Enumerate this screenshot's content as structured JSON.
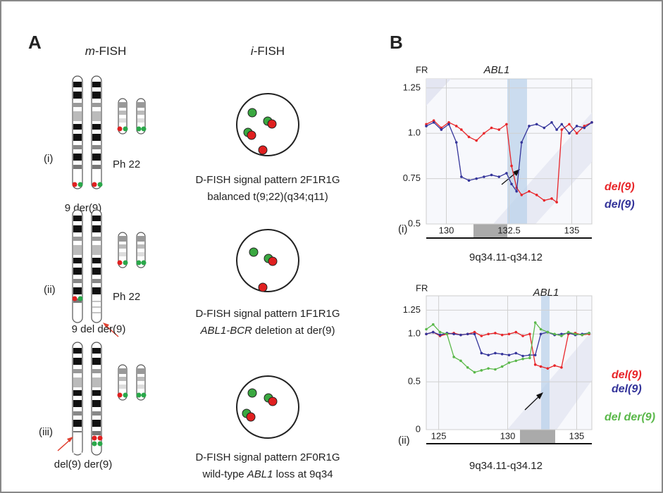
{
  "panel_a": {
    "label": "A",
    "m_fish": [
      "m",
      "-FISH"
    ],
    "i_fish": [
      "i",
      "-FISH"
    ],
    "rows": [
      {
        "label": "(i)",
        "small_label": "Ph 22",
        "big_label": "9 der(9)",
        "pattern": "D-FISH signal pattern 2F1R1G",
        "desc": [
          "balanced t(9;22)(q34;q11)"
        ]
      },
      {
        "label": "(ii)",
        "small_label": "Ph 22",
        "big_label": "9 del der(9)",
        "pattern": "D-FISH signal pattern 1F1R1G",
        "desc": [
          "ABL1-BCR",
          " deletion at der(9)"
        ]
      },
      {
        "label": "(iii)",
        "big_label": "del(9) der(9)",
        "pattern": "D-FISH signal pattern 2F0R1G",
        "desc": [
          "wild-type ",
          "ABL1",
          " loss at 9q34"
        ]
      }
    ]
  },
  "panel_b_label": "B",
  "chart_data": [
    {
      "type": "line",
      "label": "(i)",
      "ylabel": "FR",
      "annotation": "ABL1",
      "xlabel": "9q34.11-q34.12",
      "xlim": [
        129.2,
        135.8
      ],
      "xticks": [
        130,
        132.5,
        135
      ],
      "ylim": [
        0.5,
        1.3
      ],
      "yticks": [
        {
          "value": 0.5,
          "label": "0.5"
        },
        {
          "value": 0.75,
          "label": "0.75"
        },
        {
          "value": 1,
          "label": "1.0"
        },
        {
          "value": 1.25,
          "label": "1.25"
        }
      ],
      "grid": true,
      "x": [
        129.2,
        129.5,
        129.8,
        130.1,
        130.4,
        130.6,
        130.9,
        131.2,
        131.5,
        131.8,
        132.1,
        132.4,
        132.6,
        132.8,
        133.0,
        133.3,
        133.6,
        133.9,
        134.2,
        134.4,
        134.6,
        134.9,
        135.2,
        135.5,
        135.8
      ],
      "series": [
        {
          "name": "del(9)",
          "color": "#e8262a",
          "values": [
            1.05,
            1.07,
            1.03,
            1.06,
            1.04,
            1.02,
            0.98,
            0.96,
            1.0,
            1.03,
            1.02,
            1.05,
            0.82,
            0.7,
            0.66,
            0.68,
            0.66,
            0.63,
            0.64,
            0.62,
            1.02,
            1.05,
            1.0,
            1.04,
            1.06
          ]
        },
        {
          "name": "del(9)",
          "color": "#34349a",
          "values": [
            1.04,
            1.06,
            1.02,
            1.05,
            0.95,
            0.76,
            0.74,
            0.75,
            0.76,
            0.77,
            0.76,
            0.78,
            0.72,
            0.68,
            0.95,
            1.04,
            1.05,
            1.03,
            1.06,
            1.02,
            1.05,
            1.0,
            1.04,
            1.03,
            1.06
          ]
        }
      ]
    },
    {
      "type": "line",
      "label": "(ii)",
      "ylabel": "FR",
      "annotation": "ABL1",
      "xlabel": "9q34.11-q34.12",
      "xlim": [
        124.1,
        136.1
      ],
      "xticks": [
        125,
        130,
        135
      ],
      "ylim": [
        0,
        1.4
      ],
      "yticks": [
        0,
        {
          "value": 0.5,
          "label": "0.5"
        },
        {
          "value": 1,
          "label": "1.0"
        },
        {
          "value": 1.25,
          "label": "1.25"
        }
      ],
      "grid": true,
      "x": [
        124.1,
        124.6,
        125.1,
        125.6,
        126.1,
        126.6,
        127.1,
        127.6,
        128.1,
        128.6,
        129.1,
        129.6,
        130.1,
        130.6,
        131.1,
        131.6,
        132.0,
        132.4,
        132.9,
        133.4,
        133.9,
        134.4,
        134.9,
        135.4,
        135.9
      ],
      "series": [
        {
          "name": "del(9)",
          "color": "#e8262a",
          "values": [
            1.0,
            1.02,
            0.98,
            1.0,
            1.01,
            0.99,
            1.0,
            1.02,
            0.98,
            1.0,
            1.01,
            0.99,
            1.0,
            1.02,
            0.98,
            1.0,
            0.68,
            0.66,
            0.64,
            0.67,
            0.65,
            1.0,
            1.01,
            0.99,
            1.0
          ]
        },
        {
          "name": "del(9)",
          "color": "#34349a",
          "values": [
            1.0,
            1.02,
            0.99,
            1.01,
            1.0,
            0.99,
            1.0,
            1.0,
            0.8,
            0.78,
            0.8,
            0.79,
            0.78,
            0.8,
            0.77,
            0.78,
            0.78,
            1.0,
            1.02,
            0.99,
            1.0,
            1.01,
            0.99,
            1.0,
            1.01
          ]
        },
        {
          "name": "del der(9)",
          "color": "#5ab84a",
          "values": [
            1.05,
            1.1,
            1.02,
            1.0,
            0.76,
            0.72,
            0.65,
            0.6,
            0.62,
            0.64,
            0.63,
            0.66,
            0.7,
            0.72,
            0.74,
            0.75,
            1.12,
            1.05,
            1.02,
            1.0,
            0.98,
            1.02,
            1.0,
            0.99,
            1.01
          ]
        }
      ]
    }
  ]
}
